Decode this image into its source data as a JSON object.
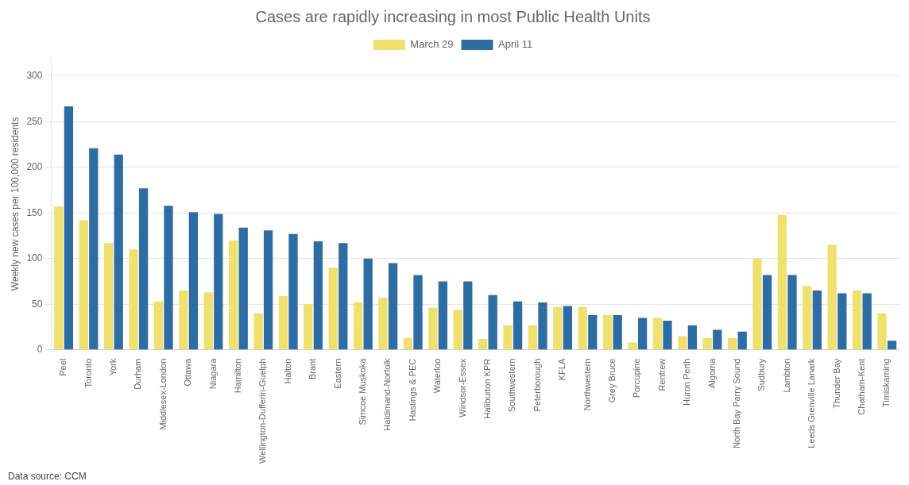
{
  "chart_data": {
    "type": "bar",
    "title": "Cases are rapidly increasing in most Public Health Units",
    "y_label": "Weekly new cases per 100,000 residents",
    "annotations": [
      "Data source: CCM"
    ],
    "categories": [
      "Peel",
      "Toronto",
      "York",
      "Durham",
      "Middlesex-London",
      "Ottawa",
      "Niagara",
      "Hamilton",
      "Wellington-Dufferin-Guelph",
      "Halton",
      "Brant",
      "Eastern",
      "Simcoe Muskoka",
      "Haldimand-Norfolk",
      "Hastings & PEC",
      "Waterloo",
      "Windsor-Essex",
      "Haliburton KPR",
      "Southwestern",
      "Peterborough",
      "KFLA",
      "Northwestern",
      "Grey Bruce",
      "Porcupine",
      "Renfrew",
      "Huron Perth",
      "Algoma",
      "North Bay Parry Sound",
      "Sudbury",
      "Lambton",
      "Leeds Grenville Lanark",
      "Thunder Bay",
      "Chatham-Kent",
      "Timiskaming"
    ],
    "series": [
      {
        "name": "March 29",
        "color": "#f0e06e",
        "values": [
          157,
          142,
          117,
          110,
          53,
          65,
          63,
          120,
          40,
          59,
          50,
          90,
          52,
          57,
          13,
          46,
          44,
          12,
          27,
          27,
          47,
          47,
          38,
          8,
          35,
          15,
          13,
          13,
          100,
          148,
          70,
          115,
          65,
          40
        ]
      },
      {
        "name": "April 11",
        "color": "#2e6da4",
        "values": [
          267,
          221,
          214,
          177,
          158,
          151,
          149,
          134,
          131,
          127,
          119,
          117,
          100,
          95,
          82,
          75,
          75,
          60,
          53,
          52,
          48,
          38,
          38,
          35,
          32,
          27,
          22,
          20,
          82,
          82,
          65,
          62,
          62,
          10
        ]
      }
    ],
    "ylim": [
      0,
      320
    ],
    "yticks": [
      0,
      50,
      100,
      150,
      200,
      250,
      300
    ],
    "grid": true,
    "legend": "top"
  }
}
